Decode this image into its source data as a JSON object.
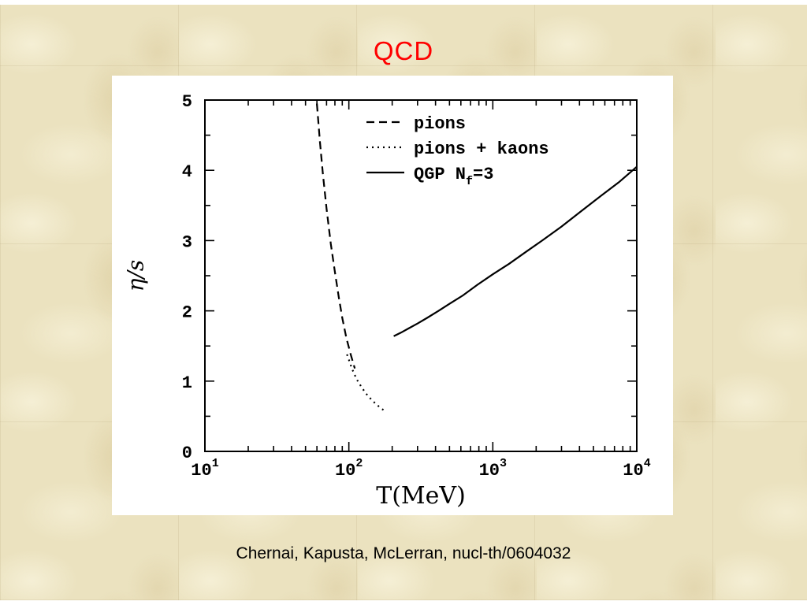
{
  "slide": {
    "title": "QCD",
    "citation": "Chernai, Kapusta, McLerran, nucl-th/0604032"
  },
  "colors": {
    "title": "#ff0000",
    "background": "#ebe2bf",
    "panel": "#ffffff",
    "line": "#000000"
  },
  "chart_data": {
    "type": "line",
    "title": "QCD",
    "xlabel": "T(MeV)",
    "ylabel": "η/s",
    "x_scale": "log",
    "xlim": [
      10,
      10000
    ],
    "ylim": [
      0,
      5
    ],
    "x_ticks": [
      10,
      100,
      1000,
      10000
    ],
    "y_ticks": [
      0,
      1,
      2,
      3,
      4,
      5
    ],
    "grid": false,
    "legend_position": "top-inside",
    "series": [
      {
        "name": "pions",
        "style": "dashed",
        "color": "#000000",
        "x": [
          60,
          63,
          66,
          70,
          75,
          80,
          85,
          90,
          96,
          103,
          110
        ],
        "y": [
          4.95,
          4.4,
          3.95,
          3.45,
          2.95,
          2.55,
          2.2,
          1.9,
          1.62,
          1.38,
          1.18
        ]
      },
      {
        "name": "pions + kaons",
        "style": "dotted",
        "color": "#000000",
        "x": [
          97,
          105,
          113,
          122,
          132,
          143,
          155,
          168,
          180
        ],
        "y": [
          1.38,
          1.18,
          1.03,
          0.92,
          0.82,
          0.74,
          0.67,
          0.61,
          0.57
        ]
      },
      {
        "name": "QGP N_f=3",
        "style": "solid",
        "color": "#000000",
        "x": [
          205,
          230,
          260,
          300,
          350,
          420,
          500,
          620,
          780,
          1000,
          1300,
          1700,
          2200,
          3000,
          4000,
          5500,
          7500,
          10000
        ],
        "y": [
          1.64,
          1.69,
          1.75,
          1.82,
          1.9,
          2.0,
          2.1,
          2.22,
          2.37,
          2.52,
          2.67,
          2.84,
          3.0,
          3.2,
          3.4,
          3.62,
          3.83,
          4.05
        ]
      }
    ]
  }
}
